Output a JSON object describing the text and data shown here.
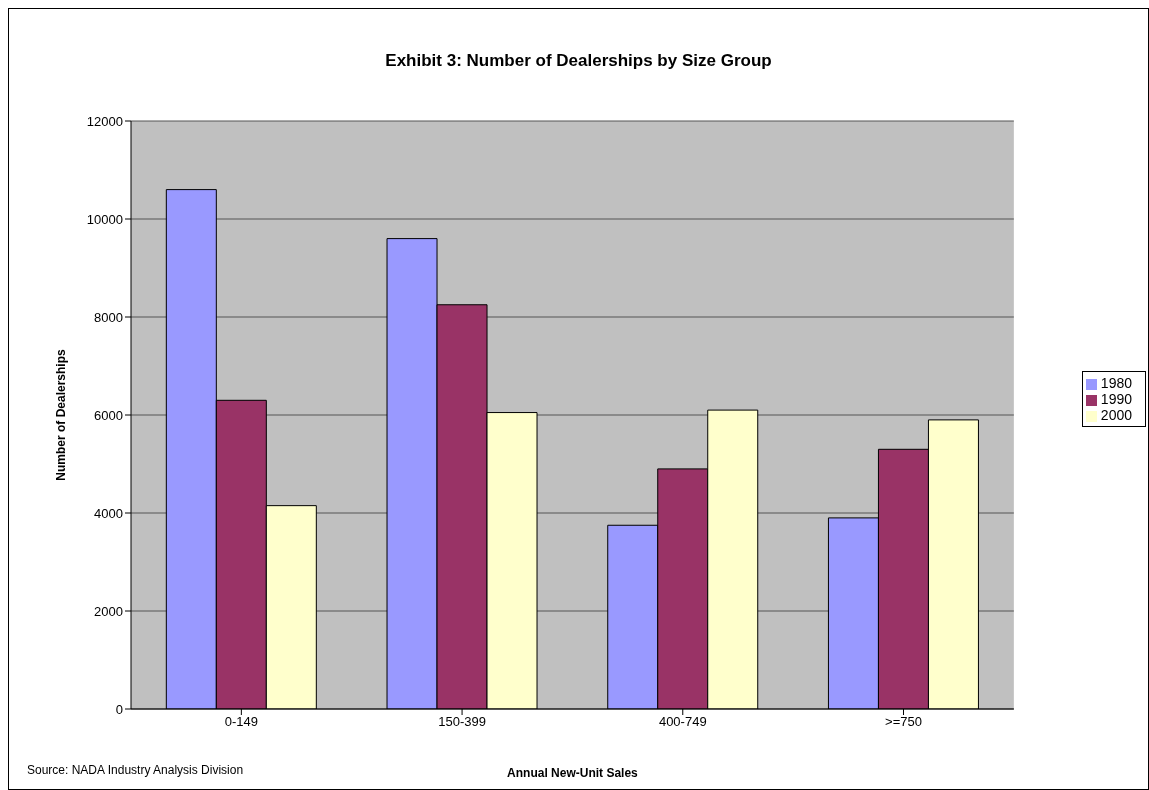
{
  "chart_data": {
    "type": "bar",
    "title": "Exhibit 3: Number of Dealerships by Size Group",
    "xlabel": "Annual New-Unit Sales",
    "ylabel": "Number of Dealerships",
    "categories": [
      "0-149",
      "150-399",
      "400-749",
      ">=750"
    ],
    "series": [
      {
        "name": "1980",
        "color": "#9999ff",
        "values": [
          10600,
          9600,
          3750,
          3900
        ]
      },
      {
        "name": "1990",
        "color": "#993366",
        "values": [
          6300,
          8250,
          4900,
          5300
        ]
      },
      {
        "name": "2000",
        "color": "#ffffcc",
        "values": [
          4150,
          6050,
          6100,
          5900
        ]
      }
    ],
    "ylim": [
      0,
      12000
    ],
    "yticks": [
      0,
      2000,
      4000,
      6000,
      8000,
      10000,
      12000
    ],
    "grid": "y",
    "legend": "right",
    "annotations": [
      "Source: NADA Industry Analysis Division"
    ]
  }
}
